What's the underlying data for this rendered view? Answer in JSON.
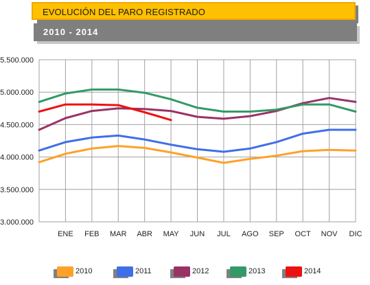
{
  "header": {
    "title": "EVOLUCIÓN DEL PARO REGISTRADO",
    "subtitle": "2010 - 2014"
  },
  "colors": {
    "title_bg": "#ffc000",
    "subtitle_bg": "#7f7f7f"
  },
  "chart_data": {
    "type": "line",
    "title": "EVOLUCIÓN DEL PARO REGISTRADO",
    "subtitle": "2010 - 2014",
    "categories": [
      "",
      "ENE",
      "FEB",
      "MAR",
      "ABR",
      "MAY",
      "JUN",
      "JUL",
      "AGO",
      "SEP",
      "OCT",
      "NOV",
      "DIC"
    ],
    "ylim": [
      3000000,
      5500000
    ],
    "yticks": [
      3000000,
      3500000,
      4000000,
      4500000,
      5000000,
      5500000
    ],
    "ytick_labels": [
      "3.000.000",
      "3.500.000",
      "4.000.000",
      "4.500.000",
      "5.000.000",
      "5.500.000"
    ],
    "grid": true,
    "legend_position": "bottom",
    "series": [
      {
        "name": "2010",
        "color": "#ffa028",
        "values": [
          3920000,
          4050000,
          4130000,
          4170000,
          4140000,
          4070000,
          3990000,
          3910000,
          3970000,
          4020000,
          4090000,
          4110000,
          4100000
        ]
      },
      {
        "name": "2011",
        "color": "#3f6fe8",
        "values": [
          4100000,
          4230000,
          4300000,
          4330000,
          4270000,
          4190000,
          4120000,
          4080000,
          4130000,
          4230000,
          4360000,
          4420000,
          4420000
        ]
      },
      {
        "name": "2012",
        "color": "#993366",
        "values": [
          4420000,
          4600000,
          4710000,
          4750000,
          4740000,
          4710000,
          4620000,
          4590000,
          4630000,
          4710000,
          4830000,
          4910000,
          4850000
        ]
      },
      {
        "name": "2013",
        "color": "#339966",
        "values": [
          4850000,
          4980000,
          5040000,
          5040000,
          4990000,
          4890000,
          4760000,
          4700000,
          4700000,
          4730000,
          4810000,
          4810000,
          4700000
        ]
      },
      {
        "name": "2014",
        "color": "#ee1111",
        "values": [
          4700000,
          4810000,
          4810000,
          4800000,
          4690000,
          4570000,
          null,
          null,
          null,
          null,
          null,
          null,
          null
        ]
      }
    ]
  }
}
